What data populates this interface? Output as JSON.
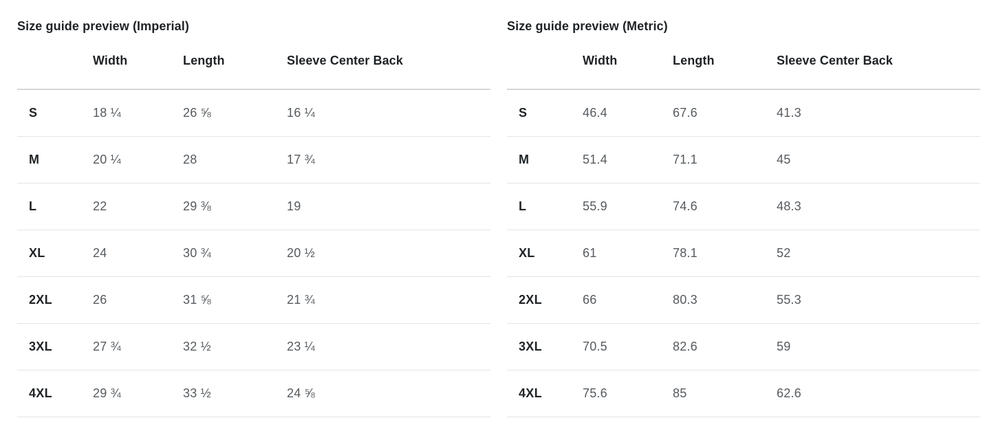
{
  "colors": {
    "background": "#ffffff",
    "text_dark": "#1f2326",
    "text_value_gray": "#565b5f",
    "header_rule": "#d5d7d8",
    "row_rule": "#e4e5e7"
  },
  "tables": [
    {
      "title": "Size guide preview (Imperial)",
      "columns": [
        "",
        "Width",
        "Length",
        "Sleeve Center Back"
      ],
      "rows": [
        {
          "size": "S",
          "width": "18 ¼",
          "length": "26 ⅝",
          "sleeve": "16 ¼"
        },
        {
          "size": "M",
          "width": "20 ¼",
          "length": "28",
          "sleeve": "17 ¾"
        },
        {
          "size": "L",
          "width": "22",
          "length": "29 ⅜",
          "sleeve": "19"
        },
        {
          "size": "XL",
          "width": "24",
          "length": "30 ¾",
          "sleeve": "20 ½"
        },
        {
          "size": "2XL",
          "width": "26",
          "length": "31 ⅝",
          "sleeve": "21 ¾"
        },
        {
          "size": "3XL",
          "width": "27 ¾",
          "length": "32 ½",
          "sleeve": "23 ¼"
        },
        {
          "size": "4XL",
          "width": "29 ¾",
          "length": "33 ½",
          "sleeve": "24 ⅝"
        }
      ]
    },
    {
      "title": "Size guide preview (Metric)",
      "columns": [
        "",
        "Width",
        "Length",
        "Sleeve Center Back"
      ],
      "rows": [
        {
          "size": "S",
          "width": "46.4",
          "length": "67.6",
          "sleeve": "41.3"
        },
        {
          "size": "M",
          "width": "51.4",
          "length": "71.1",
          "sleeve": "45"
        },
        {
          "size": "L",
          "width": "55.9",
          "length": "74.6",
          "sleeve": "48.3"
        },
        {
          "size": "XL",
          "width": "61",
          "length": "78.1",
          "sleeve": "52"
        },
        {
          "size": "2XL",
          "width": "66",
          "length": "80.3",
          "sleeve": "55.3"
        },
        {
          "size": "3XL",
          "width": "70.5",
          "length": "82.6",
          "sleeve": "59"
        },
        {
          "size": "4XL",
          "width": "75.6",
          "length": "85",
          "sleeve": "62.6"
        }
      ]
    }
  ]
}
